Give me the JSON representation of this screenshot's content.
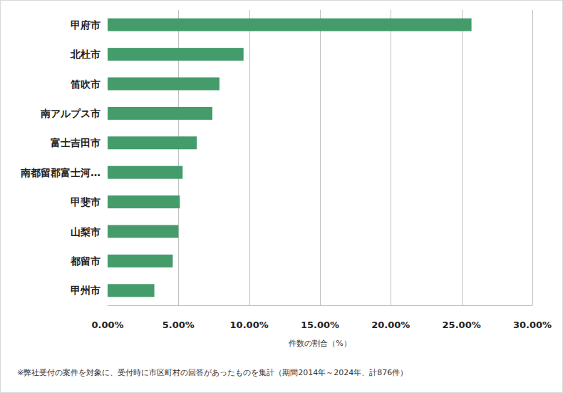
{
  "chart_data": {
    "type": "bar",
    "orientation": "horizontal",
    "categories": [
      "甲府市",
      "北杜市",
      "笛吹市",
      "南アルプス市",
      "富士吉田市",
      "南都留郡富士河…",
      "甲斐市",
      "山梨市",
      "都留市",
      "甲州市"
    ],
    "values": [
      25.7,
      9.6,
      7.9,
      7.4,
      6.3,
      5.3,
      5.1,
      5.0,
      4.6,
      3.3
    ],
    "color": "#449c6b",
    "xlabel": "件数の割合（%）",
    "xlim": [
      0,
      30
    ],
    "xticks": [
      {
        "value": 0,
        "label": "0.00%"
      },
      {
        "value": 5,
        "label": "5.00%"
      },
      {
        "value": 10,
        "label": "10.00%"
      },
      {
        "value": 15,
        "label": "15.00%"
      },
      {
        "value": 20,
        "label": "20.00%"
      },
      {
        "value": 25,
        "label": "25.00%"
      },
      {
        "value": 30,
        "label": "30.00%"
      }
    ],
    "grid": true,
    "annotations": [
      "※弊社受付の案件を対象に、受付時に市区町村の回答があったものを集計（期間2014年～2024年、計876件）"
    ]
  }
}
